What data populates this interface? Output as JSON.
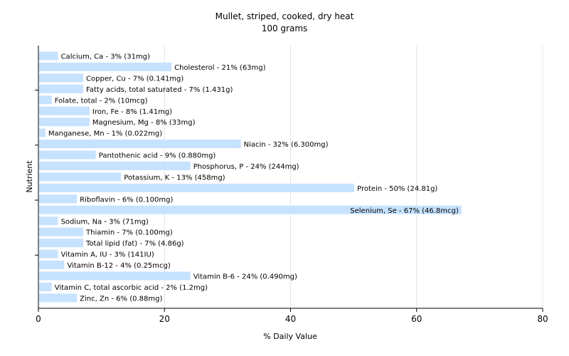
{
  "chart_data": {
    "type": "bar",
    "orientation": "horizontal",
    "title": "Mullet, striped, cooked, dry heat",
    "subtitle": "100 grams",
    "xlabel": "% Daily Value",
    "ylabel": "Nutrient",
    "xlim": [
      0,
      80
    ],
    "xticks": [
      0,
      20,
      40,
      60,
      80
    ],
    "grid": true,
    "bar_color": "#c6e2ff",
    "categories": [
      "Calcium, Ca",
      "Cholesterol",
      "Copper, Cu",
      "Fatty acids, total saturated",
      "Folate, total",
      "Iron, Fe",
      "Magnesium, Mg",
      "Manganese, Mn",
      "Niacin",
      "Pantothenic acid",
      "Phosphorus, P",
      "Potassium, K",
      "Protein",
      "Riboflavin",
      "Selenium, Se",
      "Sodium, Na",
      "Thiamin",
      "Total lipid (fat)",
      "Vitamin A, IU",
      "Vitamin B-12",
      "Vitamin B-6",
      "Vitamin C, total ascorbic acid",
      "Zinc, Zn"
    ],
    "values": [
      3,
      21,
      7,
      7,
      2,
      8,
      8,
      1,
      32,
      9,
      24,
      13,
      50,
      6,
      67,
      3,
      7,
      7,
      3,
      4,
      24,
      2,
      6
    ],
    "labels": [
      "Calcium, Ca - 3% (31mg)",
      "Cholesterol - 21% (63mg)",
      "Copper, Cu - 7% (0.141mg)",
      "Fatty acids, total saturated - 7% (1.431g)",
      "Folate, total - 2% (10mcg)",
      "Iron, Fe - 8% (1.41mg)",
      "Magnesium, Mg - 8% (33mg)",
      "Manganese, Mn - 1% (0.022mg)",
      "Niacin - 32% (6.300mg)",
      "Pantothenic acid - 9% (0.880mg)",
      "Phosphorus, P - 24% (244mg)",
      "Potassium, K - 13% (458mg)",
      "Protein - 50% (24.81g)",
      "Riboflavin - 6% (0.100mg)",
      "Selenium, Se - 67% (46.8mcg)",
      "Sodium, Na - 3% (71mg)",
      "Thiamin - 7% (0.100mg)",
      "Total lipid (fat) - 7% (4.86g)",
      "Vitamin A, IU - 3% (141IU)",
      "Vitamin B-12 - 4% (0.25mcg)",
      "Vitamin B-6 - 24% (0.490mg)",
      "Vitamin C, total ascorbic acid - 2% (1.2mg)",
      "Zinc, Zn - 6% (0.88mg)"
    ]
  }
}
